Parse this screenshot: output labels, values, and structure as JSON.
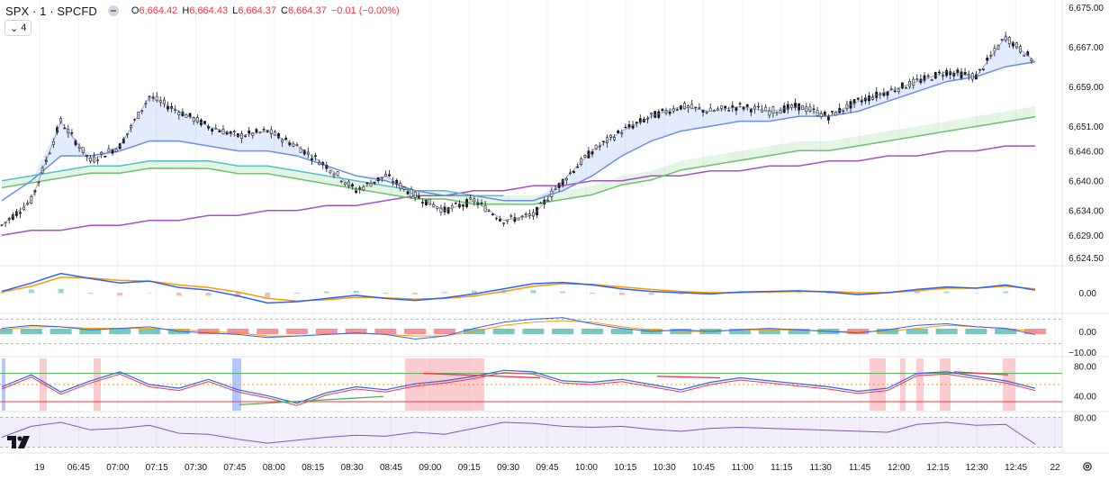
{
  "header": {
    "symbol": "SPX · 1 · SPCFD",
    "open": "6,664.42",
    "high": "6,664.43",
    "low": "6,664.37",
    "close": "6,664.37",
    "change": "−0.01 (−0.00%)",
    "collapse_label": "4"
  },
  "colors": {
    "up": "#089981",
    "down": "#f23645",
    "candle": "#131722",
    "ema_fast": "#787b86",
    "ema_blue": "#6b8de8",
    "ema_cyan": "#4fc3c3",
    "ema_green": "#6cc070",
    "ema_purple": "#a64fc9",
    "macd_blue": "#2962ff",
    "macd_orange": "#ff9800",
    "rsi_purple": "#7e57c2",
    "grid": "#f0f3fa"
  },
  "chart_data": {
    "type": "line",
    "time_labels": [
      "19",
      "06:45",
      "07:00",
      "07:15",
      "07:30",
      "07:45",
      "08:00",
      "08:15",
      "08:30",
      "08:45",
      "09:00",
      "09:15",
      "09:30",
      "09:45",
      "10:00",
      "10:15",
      "10:30",
      "10:45",
      "11:00",
      "11:15",
      "11:30",
      "11:45",
      "12:00",
      "12:15",
      "12:30",
      "12:45",
      "22"
    ],
    "price_axis": {
      "ticks": [
        "6,675.00",
        "6,667.00",
        "6,659.00",
        "6,651.00",
        "6,646.00",
        "6,640.00",
        "6,634.00",
        "6,629.00",
        "6,624.50"
      ],
      "ylim": [
        6624.5,
        6675.0
      ]
    },
    "price_series": {
      "name": "SPX",
      "y": [
        6631,
        6636,
        6652,
        6644,
        6647,
        6657,
        6654,
        6651,
        6649,
        6650,
        6647,
        6643,
        6638,
        6641,
        6637,
        6634,
        6636,
        6632,
        6633,
        6640,
        6646,
        6650,
        6653,
        6655,
        6654,
        6655,
        6654,
        6655,
        6653,
        6656,
        6658,
        6660,
        6662,
        6661,
        6669,
        6664
      ]
    },
    "ema_blue": {
      "y": [
        6636,
        6640,
        6645,
        6645,
        6646,
        6648,
        6648,
        6647,
        6646,
        6646,
        6645,
        6643,
        6641,
        6640,
        6638,
        6637,
        6637,
        6636,
        6636,
        6638,
        6641,
        6645,
        6648,
        6650,
        6651,
        6652,
        6652,
        6653,
        6653,
        6654,
        6656,
        6658,
        6660,
        6661,
        6663,
        6664
      ]
    },
    "ema_cyan": {
      "y": [
        6640,
        6641,
        6642,
        6643,
        6643,
        6644,
        6644,
        6644,
        6643,
        6643,
        6642,
        6641,
        6640,
        6639,
        6638,
        6638,
        6637,
        6637,
        6637,
        6638,
        6639,
        6641,
        6642,
        6644,
        6645,
        6646,
        6647,
        6648,
        6648,
        6649,
        6650,
        6651,
        6652,
        6653,
        6654,
        6655
      ]
    },
    "ema_green_axis_values": [
      "6,651.00",
      "6,646.00"
    ],
    "ema_purple": {
      "y": [
        6629,
        6630,
        6630,
        6631,
        6631,
        6632,
        6632,
        6633,
        6633,
        6634,
        6634,
        6635,
        6635,
        6636,
        6637,
        6637,
        6638,
        6638,
        6639,
        6639,
        6640,
        6640,
        6641,
        6641,
        6642,
        6642,
        6643,
        6643,
        6644,
        6644,
        6645,
        6645,
        6646,
        6646,
        6647,
        6647
      ]
    },
    "macd_panel": {
      "ticks": [
        "0.00"
      ],
      "blue": [
        0.2,
        1.5,
        3.0,
        2.2,
        1.5,
        1.8,
        0.8,
        0.4,
        -0.5,
        -1.6,
        -1.4,
        -0.9,
        -0.4,
        -0.9,
        -1.2,
        -0.8,
        -0.2,
        0.6,
        1.4,
        1.6,
        1.2,
        0.6,
        0.2,
        0.0,
        -0.2,
        0.1,
        0.2,
        0.3,
        0.1,
        -0.3,
        0.0,
        0.5,
        0.9,
        0.7,
        1.2,
        0.4
      ],
      "orange": [
        0.1,
        1.0,
        2.4,
        2.3,
        1.9,
        1.8,
        1.2,
        0.8,
        0.1,
        -0.9,
        -1.3,
        -1.1,
        -0.7,
        -0.8,
        -1.0,
        -0.9,
        -0.5,
        0.2,
        1.0,
        1.4,
        1.3,
        0.9,
        0.5,
        0.2,
        0.0,
        0.0,
        0.1,
        0.2,
        0.2,
        0.0,
        0.0,
        0.3,
        0.7,
        0.7,
        1.0,
        0.6
      ]
    },
    "oscillator_panel": {
      "ticks": [
        "0.00",
        "−10.00"
      ],
      "blue": [
        2,
        4,
        3,
        1,
        2,
        3,
        0,
        -1,
        -2,
        -4,
        -3,
        -2,
        -1,
        -2,
        -5,
        -3,
        2,
        6,
        8,
        9,
        5,
        2,
        0,
        1,
        0,
        1,
        2,
        1,
        0,
        -1,
        1,
        4,
        5,
        3,
        2,
        -2
      ],
      "orange": [
        1,
        3,
        3,
        2,
        2,
        2,
        1,
        0,
        -1,
        -3,
        -3,
        -2,
        -1,
        -2,
        -3,
        -3,
        0,
        4,
        6,
        7,
        6,
        3,
        1,
        0,
        0,
        1,
        1,
        1,
        0,
        0,
        0,
        2,
        4,
        3,
        2,
        0
      ]
    },
    "stoch_panel": {
      "ticks": [
        "80.00",
        "40.00"
      ],
      "upper_band": 70,
      "lower_band": 32,
      "mid": 55,
      "line": [
        52,
        68,
        45,
        60,
        72,
        55,
        50,
        62,
        48,
        40,
        30,
        44,
        52,
        48,
        56,
        60,
        66,
        74,
        72,
        60,
        58,
        62,
        55,
        48,
        58,
        64,
        60,
        56,
        52,
        46,
        50,
        70,
        72,
        66,
        60,
        50
      ]
    },
    "rsi_panel": {
      "ticks": [
        "80.00"
      ],
      "upper": 80,
      "lower": 20,
      "line": [
        40,
        62,
        70,
        55,
        58,
        64,
        48,
        46,
        36,
        28,
        34,
        40,
        44,
        42,
        50,
        46,
        58,
        70,
        68,
        62,
        60,
        62,
        56,
        52,
        58,
        60,
        58,
        56,
        54,
        52,
        50,
        66,
        70,
        64,
        66,
        26
      ]
    }
  }
}
